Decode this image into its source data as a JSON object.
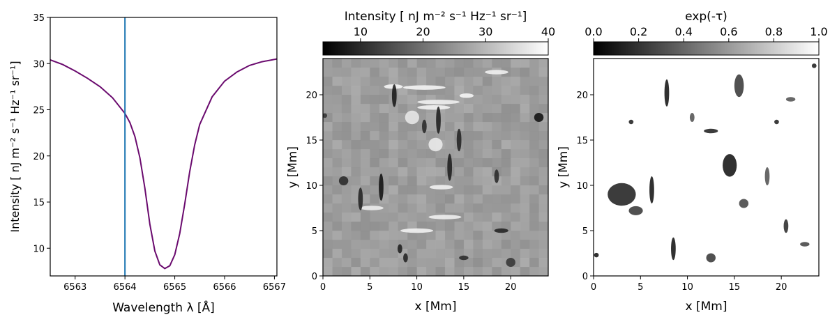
{
  "colors": {
    "profile_line": "#6a0a6e",
    "marker_line": "#1f77b4",
    "axis": "#000000",
    "background": "#ffffff"
  },
  "chart_data": [
    {
      "type": "line",
      "name": "spectral-profile",
      "xlabel": "Wavelength λ [Å]",
      "ylabel": "Intensity [ nJ m⁻² s⁻¹ Hz⁻¹ sr⁻¹]",
      "xlim": [
        6562.5,
        6567.05
      ],
      "ylim": [
        7,
        35
      ],
      "xticks": [
        6563,
        6564,
        6565,
        6566,
        6567
      ],
      "yticks": [
        10,
        15,
        20,
        25,
        30,
        35
      ],
      "x": [
        6562.5,
        6562.75,
        6563.0,
        6563.25,
        6563.5,
        6563.75,
        6564.0,
        6564.1,
        6564.2,
        6564.3,
        6564.4,
        6564.5,
        6564.6,
        6564.7,
        6564.8,
        6564.9,
        6565.0,
        6565.1,
        6565.2,
        6565.3,
        6565.4,
        6565.5,
        6565.75,
        6566.0,
        6566.25,
        6566.5,
        6566.75,
        6567.05
      ],
      "y": [
        30.4,
        29.9,
        29.2,
        28.4,
        27.5,
        26.3,
        24.6,
        23.6,
        22.1,
        19.8,
        16.5,
        12.6,
        9.7,
        8.2,
        7.8,
        8.1,
        9.3,
        11.6,
        14.8,
        18.3,
        21.2,
        23.4,
        26.4,
        28.1,
        29.1,
        29.8,
        30.2,
        30.5
      ],
      "marker_x": 6564.0,
      "grid": false
    },
    {
      "type": "heatmap",
      "name": "intensity-map",
      "colorbar_label": "Intensity [ nJ m⁻² s⁻¹ Hz⁻¹ sr⁻¹]",
      "colorbar_range": [
        4,
        40
      ],
      "colorbar_ticks": [
        10,
        20,
        30,
        40
      ],
      "colormap": "gray",
      "xlabel": "x [Mm]",
      "ylabel": "y [Mm]",
      "xlim": [
        0,
        24
      ],
      "ylim": [
        0,
        24
      ],
      "xticks": [
        0,
        5,
        10,
        15,
        20
      ],
      "yticks": [
        0,
        5,
        10,
        15,
        20
      ],
      "background_value": 0.62,
      "features": [
        {
          "x": 10.8,
          "y": 20.8,
          "w": 4.5,
          "h": 0.5,
          "v": 0.98
        },
        {
          "x": 12.3,
          "y": 19.2,
          "w": 4.5,
          "h": 0.5,
          "v": 0.96
        },
        {
          "x": 11.8,
          "y": 18.6,
          "w": 3.5,
          "h": 0.5,
          "v": 0.97
        },
        {
          "x": 15.3,
          "y": 19.9,
          "w": 1.5,
          "h": 0.5,
          "v": 0.98
        },
        {
          "x": 9.5,
          "y": 17.5,
          "w": 1.5,
          "h": 1.5,
          "v": 0.92
        },
        {
          "x": 12.0,
          "y": 14.5,
          "w": 1.5,
          "h": 1.5,
          "v": 0.93
        },
        {
          "x": 12.6,
          "y": 9.8,
          "w": 2.5,
          "h": 0.5,
          "v": 0.97
        },
        {
          "x": 13.0,
          "y": 6.5,
          "w": 3.5,
          "h": 0.5,
          "v": 0.96
        },
        {
          "x": 10.0,
          "y": 5.0,
          "w": 3.5,
          "h": 0.5,
          "v": 0.97
        },
        {
          "x": 5.2,
          "y": 7.5,
          "w": 2.5,
          "h": 0.5,
          "v": 0.95
        },
        {
          "x": 7.5,
          "y": 20.9,
          "w": 2.0,
          "h": 0.5,
          "v": 0.98
        },
        {
          "x": 18.5,
          "y": 22.5,
          "w": 2.5,
          "h": 0.5,
          "v": 0.96
        },
        {
          "x": 7.6,
          "y": 19.9,
          "w": 0.5,
          "h": 2.5,
          "v": 0.08
        },
        {
          "x": 12.3,
          "y": 17.2,
          "w": 0.5,
          "h": 3.0,
          "v": 0.1
        },
        {
          "x": 10.8,
          "y": 16.5,
          "w": 0.5,
          "h": 1.5,
          "v": 0.15
        },
        {
          "x": 14.5,
          "y": 15.0,
          "w": 0.5,
          "h": 2.5,
          "v": 0.12
        },
        {
          "x": 13.5,
          "y": 12.0,
          "w": 0.5,
          "h": 3.0,
          "v": 0.1
        },
        {
          "x": 6.2,
          "y": 9.8,
          "w": 0.5,
          "h": 3.0,
          "v": 0.05
        },
        {
          "x": 4.0,
          "y": 8.5,
          "w": 0.5,
          "h": 2.5,
          "v": 0.12
        },
        {
          "x": 2.2,
          "y": 10.5,
          "w": 1.0,
          "h": 1.0,
          "v": 0.15
        },
        {
          "x": 8.2,
          "y": 3.0,
          "w": 0.5,
          "h": 1.0,
          "v": 0.1
        },
        {
          "x": 8.8,
          "y": 2.0,
          "w": 0.5,
          "h": 1.0,
          "v": 0.12
        },
        {
          "x": 15.0,
          "y": 2.0,
          "w": 1.0,
          "h": 0.5,
          "v": 0.15
        },
        {
          "x": 19.0,
          "y": 5.0,
          "w": 1.5,
          "h": 0.5,
          "v": 0.12
        },
        {
          "x": 23.0,
          "y": 17.5,
          "w": 1.0,
          "h": 1.0,
          "v": 0.05
        },
        {
          "x": 0.2,
          "y": 17.7,
          "w": 0.5,
          "h": 0.5,
          "v": 0.2
        },
        {
          "x": 20.0,
          "y": 1.5,
          "w": 1.0,
          "h": 1.0,
          "v": 0.2
        },
        {
          "x": 18.5,
          "y": 11.0,
          "w": 0.5,
          "h": 1.5,
          "v": 0.15
        }
      ]
    },
    {
      "type": "heatmap",
      "name": "opacity-map",
      "colorbar_label": "exp(-τ)",
      "colorbar_range": [
        0.0,
        1.0
      ],
      "colorbar_ticks": [
        0.0,
        0.2,
        0.4,
        0.6,
        0.8,
        1.0
      ],
      "colorbar_ticklabels": [
        "0.0",
        "0.2",
        "0.4",
        "0.6",
        "0.8",
        "1.0"
      ],
      "colormap": "gray",
      "xlabel": "x [Mm]",
      "ylabel": "y [Mm]",
      "xlim": [
        0,
        24
      ],
      "ylim": [
        0,
        24
      ],
      "xticks": [
        0,
        5,
        10,
        15,
        20
      ],
      "yticks": [
        0,
        5,
        10,
        15,
        20
      ],
      "background_value": 1.0,
      "features": [
        {
          "x": 7.8,
          "y": 20.2,
          "w": 0.5,
          "h": 3.0,
          "v": 0.05
        },
        {
          "x": 15.5,
          "y": 21.0,
          "w": 1.0,
          "h": 2.5,
          "v": 0.2
        },
        {
          "x": 12.5,
          "y": 16.0,
          "w": 1.5,
          "h": 0.5,
          "v": 0.1
        },
        {
          "x": 14.5,
          "y": 12.2,
          "w": 1.5,
          "h": 2.5,
          "v": 0.05
        },
        {
          "x": 6.2,
          "y": 9.5,
          "w": 0.5,
          "h": 3.0,
          "v": 0.05
        },
        {
          "x": 3.0,
          "y": 9.0,
          "w": 3.0,
          "h": 2.5,
          "v": 0.1
        },
        {
          "x": 4.5,
          "y": 7.2,
          "w": 1.5,
          "h": 1.0,
          "v": 0.2
        },
        {
          "x": 8.5,
          "y": 3.0,
          "w": 0.5,
          "h": 2.5,
          "v": 0.05
        },
        {
          "x": 12.5,
          "y": 2.0,
          "w": 1.0,
          "h": 1.0,
          "v": 0.2
        },
        {
          "x": 18.5,
          "y": 11.0,
          "w": 0.5,
          "h": 2.0,
          "v": 0.3
        },
        {
          "x": 20.5,
          "y": 5.5,
          "w": 0.5,
          "h": 1.5,
          "v": 0.15
        },
        {
          "x": 22.5,
          "y": 3.5,
          "w": 1.0,
          "h": 0.5,
          "v": 0.25
        },
        {
          "x": 0.3,
          "y": 2.3,
          "w": 0.5,
          "h": 0.5,
          "v": 0.05
        },
        {
          "x": 19.5,
          "y": 17.0,
          "w": 0.5,
          "h": 0.5,
          "v": 0.1
        },
        {
          "x": 4.0,
          "y": 17.0,
          "w": 0.5,
          "h": 0.5,
          "v": 0.1
        },
        {
          "x": 10.5,
          "y": 17.5,
          "w": 0.5,
          "h": 1.0,
          "v": 0.3
        },
        {
          "x": 16.0,
          "y": 8.0,
          "w": 1.0,
          "h": 1.0,
          "v": 0.25
        },
        {
          "x": 21.0,
          "y": 19.5,
          "w": 1.0,
          "h": 0.5,
          "v": 0.3
        },
        {
          "x": 23.5,
          "y": 23.2,
          "w": 0.5,
          "h": 0.5,
          "v": 0.1
        }
      ]
    }
  ]
}
